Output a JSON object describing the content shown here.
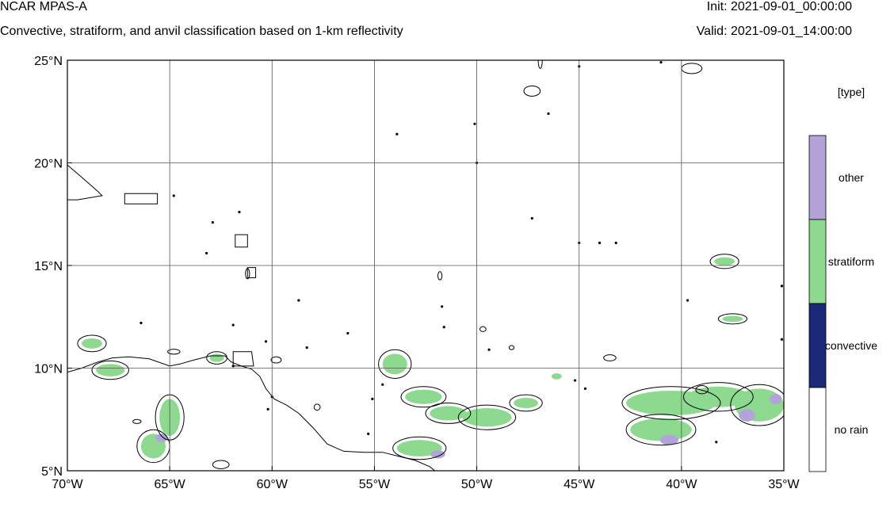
{
  "header": {
    "title": "NCAR MPAS-A",
    "subtitle": "Convective, stratiform, and anvil classification based on 1-km reflectivity",
    "init": "Init: 2021-09-01_00:00:00",
    "valid": "Valid: 2021-09-01_14:00:00"
  },
  "map": {
    "lon_range": [
      -70,
      -35
    ],
    "lat_range": [
      5,
      25
    ],
    "lon_ticks": [
      {
        "lon": -70,
        "label": "70°W"
      },
      {
        "lon": -65,
        "label": "65°W"
      },
      {
        "lon": -60,
        "label": "60°W"
      },
      {
        "lon": -55,
        "label": "55°W"
      },
      {
        "lon": -50,
        "label": "50°W"
      },
      {
        "lon": -45,
        "label": "45°W"
      },
      {
        "lon": -40,
        "label": "40°W"
      },
      {
        "lon": -35,
        "label": "35°W"
      }
    ],
    "lat_ticks": [
      {
        "lat": 25,
        "label": "25°N"
      },
      {
        "lat": 20,
        "label": "20°N"
      },
      {
        "lat": 15,
        "label": "15°N"
      },
      {
        "lat": 10,
        "label": "10°N"
      },
      {
        "lat": 5,
        "label": "5°N"
      }
    ],
    "grid": true,
    "coastline": [
      [
        -70,
        9.8
      ],
      [
        -69.3,
        10.0
      ],
      [
        -68.5,
        10.3
      ],
      [
        -67.8,
        10.5
      ],
      [
        -67.0,
        10.55
      ],
      [
        -66.0,
        10.45
      ],
      [
        -65.0,
        10.1
      ],
      [
        -64.5,
        10.2
      ],
      [
        -63.8,
        10.4
      ],
      [
        -63.0,
        10.6
      ],
      [
        -62.3,
        10.6
      ],
      [
        -62.0,
        10.3
      ],
      [
        -61.5,
        10.1
      ],
      [
        -61.0,
        9.95
      ],
      [
        -60.6,
        9.6
      ],
      [
        -60.3,
        9.0
      ],
      [
        -59.9,
        8.5
      ],
      [
        -59.3,
        8.2
      ],
      [
        -58.7,
        7.8
      ],
      [
        -58.0,
        7.1
      ],
      [
        -57.3,
        6.3
      ],
      [
        -56.5,
        5.95
      ],
      [
        -55.5,
        5.9
      ],
      [
        -54.6,
        5.9
      ],
      [
        -53.8,
        5.7
      ],
      [
        -53.0,
        5.5
      ],
      [
        -52.3,
        5.2
      ],
      [
        -51.8,
        4.8
      ],
      [
        -51.5,
        4.3
      ]
    ],
    "islands": [
      {
        "name": "Hispaniola",
        "points": [
          [
            -70,
            19.9
          ],
          [
            -69.3,
            19.3
          ],
          [
            -68.5,
            18.6
          ],
          [
            -68.3,
            18.4
          ],
          [
            -69.5,
            18.2
          ],
          [
            -70,
            18.2
          ]
        ]
      },
      {
        "name": "Puerto Rico",
        "points": [
          [
            -67.2,
            18.5
          ],
          [
            -65.6,
            18.5
          ],
          [
            -65.6,
            18.0
          ],
          [
            -67.2,
            18.0
          ]
        ]
      },
      {
        "name": "Trinidad",
        "points": [
          [
            -61.9,
            10.8
          ],
          [
            -61.0,
            10.8
          ],
          [
            -60.9,
            10.1
          ],
          [
            -61.9,
            10.1
          ]
        ]
      },
      {
        "name": "Guadeloupe",
        "points": [
          [
            -61.8,
            16.5
          ],
          [
            -61.2,
            16.5
          ],
          [
            -61.2,
            15.9
          ],
          [
            -61.8,
            15.9
          ]
        ]
      },
      {
        "name": "Martinique",
        "points": [
          [
            -61.2,
            14.9
          ],
          [
            -60.8,
            14.9
          ],
          [
            -60.8,
            14.4
          ],
          [
            -61.2,
            14.4
          ]
        ]
      }
    ],
    "precip_areas": [
      {
        "type": "stratiform",
        "lon": -68.8,
        "lat": 11.2,
        "rx": 0.5,
        "ry": 0.25
      },
      {
        "type": "stratiform",
        "lon": -67.9,
        "lat": 9.9,
        "rx": 0.7,
        "ry": 0.3
      },
      {
        "type": "stratiform",
        "lon": -65.0,
        "lat": 7.6,
        "rx": 0.5,
        "ry": 0.9
      },
      {
        "type": "stratiform",
        "lon": -65.8,
        "lat": 6.2,
        "rx": 0.6,
        "ry": 0.6
      },
      {
        "type": "other",
        "lon": -65.4,
        "lat": 6.6,
        "rx": 0.3,
        "ry": 0.2
      },
      {
        "type": "stratiform",
        "lon": -62.7,
        "lat": 10.5,
        "rx": 0.35,
        "ry": 0.2
      },
      {
        "type": "stratiform",
        "lon": -54.0,
        "lat": 10.2,
        "rx": 0.6,
        "ry": 0.5
      },
      {
        "type": "stratiform",
        "lon": -52.6,
        "lat": 8.6,
        "rx": 0.9,
        "ry": 0.35
      },
      {
        "type": "stratiform",
        "lon": -51.4,
        "lat": 7.8,
        "rx": 0.9,
        "ry": 0.35
      },
      {
        "type": "stratiform",
        "lon": -52.8,
        "lat": 6.1,
        "rx": 1.1,
        "ry": 0.4
      },
      {
        "type": "other",
        "lon": -51.9,
        "lat": 5.8,
        "rx": 0.35,
        "ry": 0.2
      },
      {
        "type": "stratiform",
        "lon": -49.5,
        "lat": 7.6,
        "rx": 1.2,
        "ry": 0.45
      },
      {
        "type": "stratiform",
        "lon": -47.6,
        "lat": 8.3,
        "rx": 0.6,
        "ry": 0.25
      },
      {
        "type": "stratiform",
        "lon": -46.1,
        "lat": 9.6,
        "rx": 0.25,
        "ry": 0.15
      },
      {
        "type": "stratiform",
        "lon": -40.5,
        "lat": 8.3,
        "rx": 2.2,
        "ry": 0.6
      },
      {
        "type": "stratiform",
        "lon": -38.2,
        "lat": 8.6,
        "rx": 1.5,
        "ry": 0.5
      },
      {
        "type": "stratiform",
        "lon": -41.0,
        "lat": 7.0,
        "rx": 1.5,
        "ry": 0.55
      },
      {
        "type": "stratiform",
        "lon": -36.2,
        "lat": 8.2,
        "rx": 1.2,
        "ry": 0.8
      },
      {
        "type": "other",
        "lon": -40.6,
        "lat": 6.5,
        "rx": 0.45,
        "ry": 0.25
      },
      {
        "type": "other",
        "lon": -36.8,
        "lat": 7.7,
        "rx": 0.4,
        "ry": 0.3
      },
      {
        "type": "other",
        "lon": -35.4,
        "lat": 8.5,
        "rx": 0.3,
        "ry": 0.25
      },
      {
        "type": "stratiform",
        "lon": -37.9,
        "lat": 15.2,
        "rx": 0.5,
        "ry": 0.2
      },
      {
        "type": "stratiform",
        "lon": -37.5,
        "lat": 12.4,
        "rx": 0.5,
        "ry": 0.15
      }
    ],
    "rain_contours": [
      {
        "lon": -68.8,
        "lat": 11.2,
        "rx": 0.7,
        "ry": 0.4
      },
      {
        "lon": -67.9,
        "lat": 9.9,
        "rx": 0.9,
        "ry": 0.45
      },
      {
        "lon": -65.0,
        "lat": 7.6,
        "rx": 0.7,
        "ry": 1.1
      },
      {
        "lon": -65.8,
        "lat": 6.2,
        "rx": 0.8,
        "ry": 0.8
      },
      {
        "lon": -62.7,
        "lat": 10.5,
        "rx": 0.5,
        "ry": 0.3
      },
      {
        "lon": -54.0,
        "lat": 10.2,
        "rx": 0.8,
        "ry": 0.7
      },
      {
        "lon": -52.6,
        "lat": 8.6,
        "rx": 1.1,
        "ry": 0.5
      },
      {
        "lon": -51.4,
        "lat": 7.8,
        "rx": 1.1,
        "ry": 0.5
      },
      {
        "lon": -52.8,
        "lat": 6.1,
        "rx": 1.3,
        "ry": 0.55
      },
      {
        "lon": -49.5,
        "lat": 7.6,
        "rx": 1.4,
        "ry": 0.6
      },
      {
        "lon": -47.6,
        "lat": 8.3,
        "rx": 0.8,
        "ry": 0.4
      },
      {
        "lon": -40.5,
        "lat": 8.3,
        "rx": 2.4,
        "ry": 0.8
      },
      {
        "lon": -38.2,
        "lat": 8.6,
        "rx": 1.7,
        "ry": 0.7
      },
      {
        "lon": -41.0,
        "lat": 7.0,
        "rx": 1.7,
        "ry": 0.75
      },
      {
        "lon": -36.2,
        "lat": 8.2,
        "rx": 1.4,
        "ry": 1.0
      },
      {
        "lon": -37.9,
        "lat": 15.2,
        "rx": 0.7,
        "ry": 0.35
      },
      {
        "lon": -37.5,
        "lat": 12.4,
        "rx": 0.7,
        "ry": 0.25
      },
      {
        "lon": -39.0,
        "lat": 8.95,
        "rx": 0.3,
        "ry": 0.2
      },
      {
        "lon": -47.3,
        "lat": 23.5,
        "rx": 0.4,
        "ry": 0.25
      },
      {
        "lon": -39.5,
        "lat": 24.6,
        "rx": 0.5,
        "ry": 0.25
      },
      {
        "lon": -43.5,
        "lat": 10.5,
        "rx": 0.3,
        "ry": 0.15
      },
      {
        "lon": -51.8,
        "lat": 14.5,
        "rx": 0.1,
        "ry": 0.2
      },
      {
        "lon": -49.7,
        "lat": 11.9,
        "rx": 0.15,
        "ry": 0.12
      },
      {
        "lon": -48.3,
        "lat": 11.0,
        "rx": 0.12,
        "ry": 0.1
      },
      {
        "lon": -61.2,
        "lat": 14.6,
        "rx": 0.1,
        "ry": 0.25
      },
      {
        "lon": -64.8,
        "lat": 10.8,
        "rx": 0.3,
        "ry": 0.12
      },
      {
        "lon": -59.8,
        "lat": 10.4,
        "rx": 0.25,
        "ry": 0.15
      },
      {
        "lon": -57.8,
        "lat": 8.1,
        "rx": 0.15,
        "ry": 0.15
      },
      {
        "lon": -62.5,
        "lat": 5.3,
        "rx": 0.4,
        "ry": 0.2
      },
      {
        "lon": -66.6,
        "lat": 7.4,
        "rx": 0.2,
        "ry": 0.1
      },
      {
        "lon": -46.9,
        "lat": 25,
        "rx": 0.1,
        "ry": 0.4
      }
    ],
    "cells": [
      [
        -64.8,
        18.4
      ],
      [
        -53.9,
        21.4
      ],
      [
        -50.0,
        20.0
      ],
      [
        -50.1,
        21.9
      ],
      [
        -47.3,
        17.3
      ],
      [
        -46.5,
        22.4
      ],
      [
        -45.0,
        16.1
      ],
      [
        -44.0,
        16.1
      ],
      [
        -43.2,
        16.1
      ],
      [
        -39.7,
        13.3
      ],
      [
        -51.7,
        13.0
      ],
      [
        -51.6,
        12.0
      ],
      [
        -58.7,
        13.3
      ],
      [
        -62.9,
        17.1
      ],
      [
        -61.6,
        17.6
      ],
      [
        -63.2,
        15.6
      ],
      [
        -60.2,
        8.0
      ],
      [
        -61.9,
        10.1
      ],
      [
        -56.3,
        11.7
      ],
      [
        -66.4,
        12.2
      ],
      [
        -35.1,
        11.4
      ],
      [
        -35.1,
        14.0
      ],
      [
        -55.3,
        6.8
      ],
      [
        -60.0,
        8.6
      ],
      [
        -45.2,
        9.4
      ],
      [
        -44.7,
        9.0
      ],
      [
        -49.4,
        10.9
      ],
      [
        -58.3,
        11.0
      ],
      [
        -61.9,
        12.1
      ],
      [
        -60.3,
        11.3
      ],
      [
        -38.3,
        6.4
      ],
      [
        -54.6,
        9.2
      ],
      [
        -55.1,
        8.5
      ],
      [
        -45.0,
        24.7
      ],
      [
        -41.0,
        24.9
      ]
    ]
  },
  "legend": {
    "title": "[type]",
    "items": [
      {
        "label": "other",
        "color": "#b4a3d9"
      },
      {
        "label": "stratiform",
        "color": "#8dd990"
      },
      {
        "label": "convective",
        "color": "#1a2a78"
      },
      {
        "label": "no rain",
        "color": "#ffffff"
      }
    ]
  }
}
